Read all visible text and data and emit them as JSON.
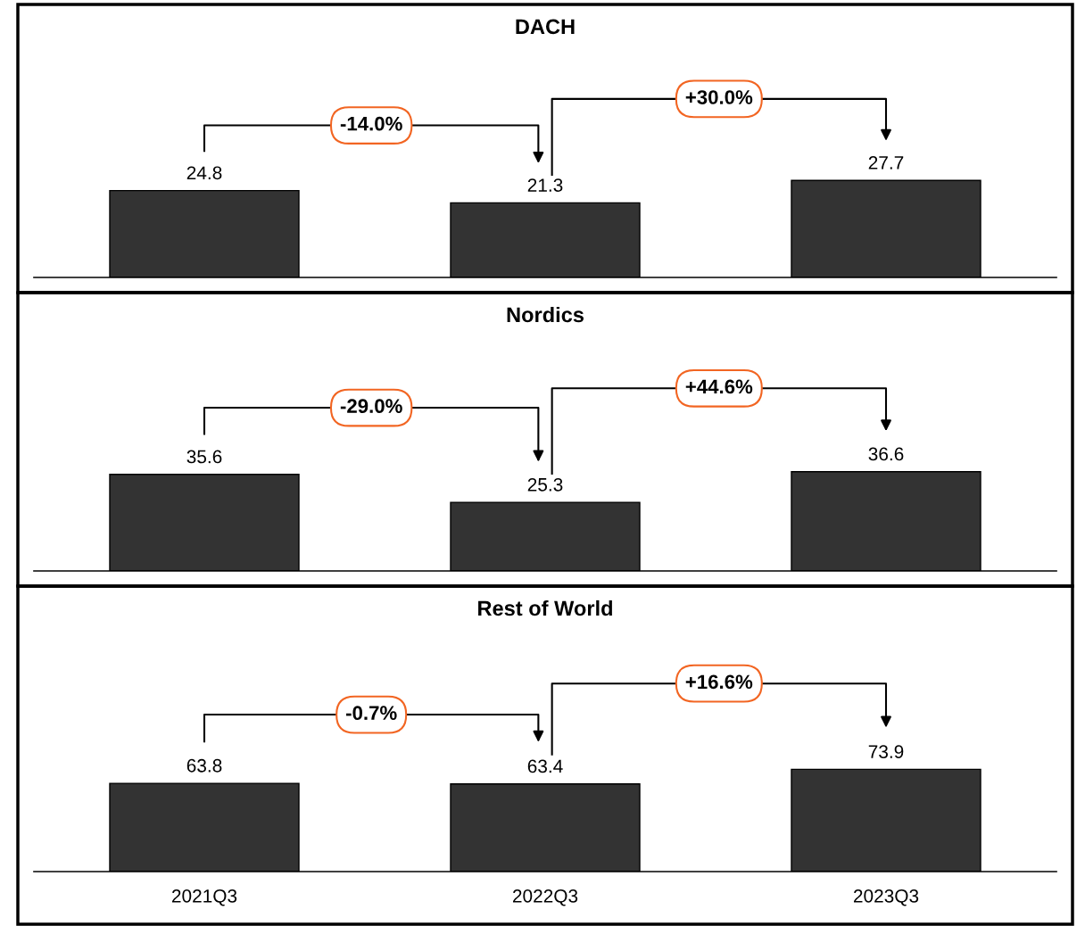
{
  "chart_data": [
    {
      "type": "bar",
      "title": "DACH",
      "categories": [
        null,
        null,
        null
      ],
      "values": [
        24.8,
        21.3,
        27.7
      ],
      "color": "#333333",
      "data_labels": true,
      "tick_labels": false,
      "annotations": [
        "-14.0%",
        "+30.0%"
      ]
    },
    {
      "type": "bar",
      "title": "Nordics",
      "categories": [
        null,
        null,
        null
      ],
      "values": [
        35.6,
        25.3,
        36.6
      ],
      "color": "#333333",
      "data_labels": true,
      "tick_labels": false,
      "annotations": [
        "-29.0%",
        "+44.6%"
      ]
    },
    {
      "type": "bar",
      "title": "Rest of World",
      "categories": [
        "2021Q3",
        "2022Q3",
        "2023Q3"
      ],
      "values": [
        63.8,
        63.4,
        73.9
      ],
      "color": "#333333",
      "data_labels": true,
      "tick_labels": "x",
      "annotations": [
        "-0.7%",
        "+16.6%"
      ]
    }
  ]
}
